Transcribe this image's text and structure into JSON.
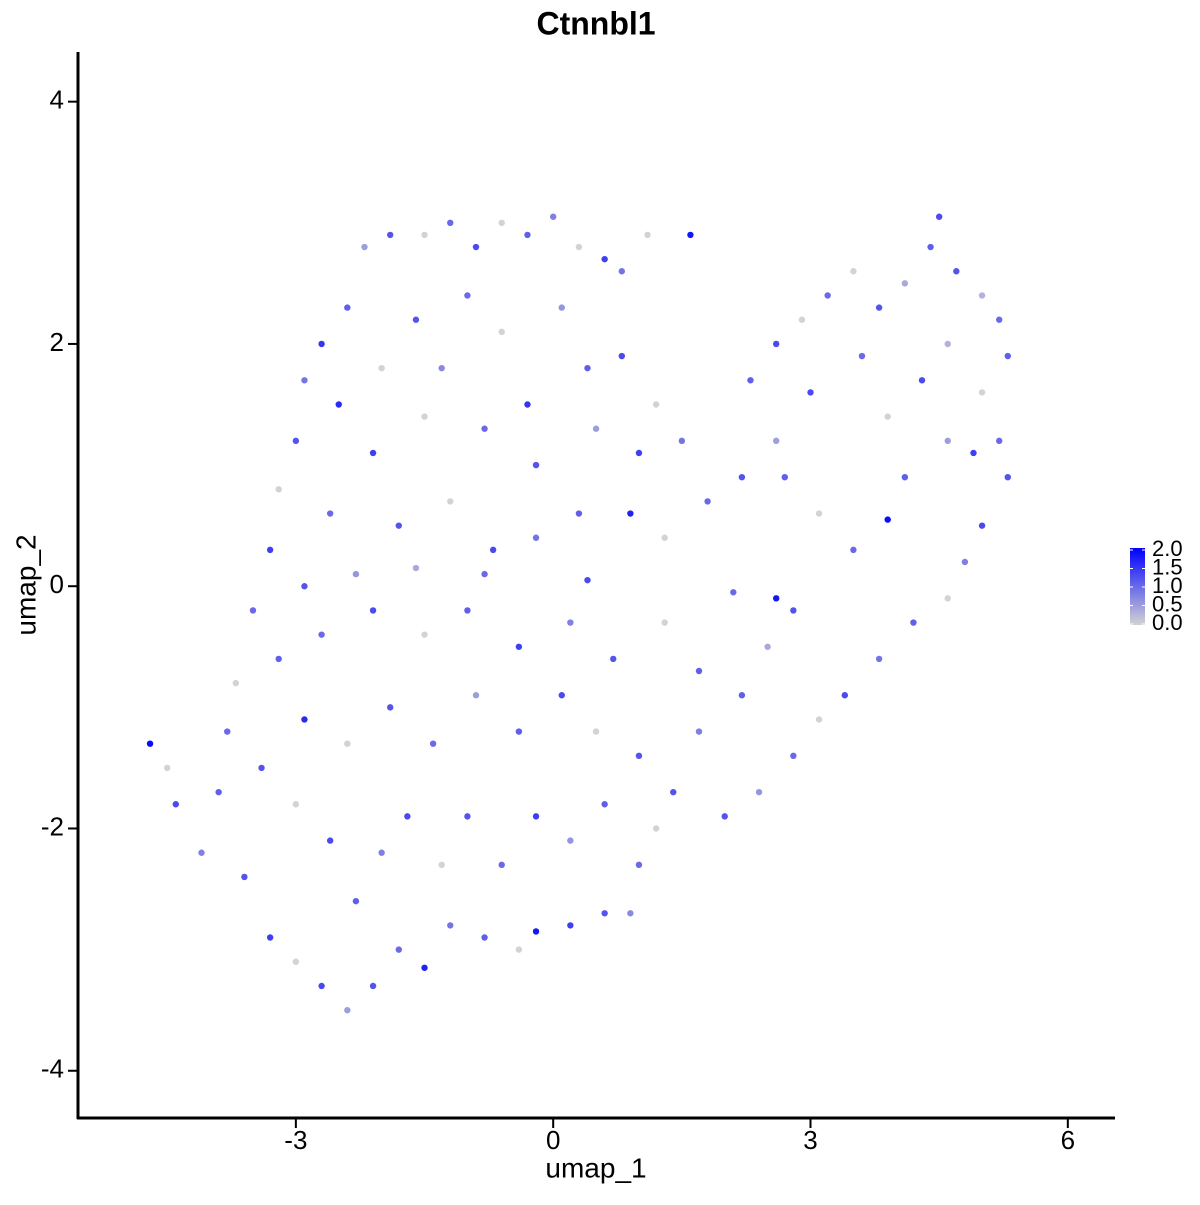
{
  "chart_data": {
    "type": "scatter",
    "title": "Ctnnbl1",
    "xlabel": "umap_1",
    "ylabel": "umap_2",
    "xlim": [
      -5.54,
      6.55
    ],
    "ylim": [
      -4.39,
      4.41
    ],
    "xticks": [
      -3,
      0,
      3,
      6
    ],
    "yticks": [
      -4,
      -2,
      0,
      2,
      4
    ],
    "color_scale": {
      "low": "#d3d3d3",
      "high": "#0000ff",
      "lim": [
        0,
        2
      ],
      "ticks": [
        {
          "value": 0,
          "label": "0.0"
        },
        {
          "value": 0.5,
          "label": "0.5"
        },
        {
          "value": 1,
          "label": "1.0"
        },
        {
          "value": 1.5,
          "label": "1.5"
        },
        {
          "value": 2,
          "label": "2.0"
        }
      ]
    },
    "x": [
      -2.2,
      -1.9,
      -1.5,
      -1.2,
      -0.9,
      -0.6,
      -0.3,
      0,
      0.3,
      0.6,
      0.8,
      1.1,
      1.6,
      -2.4,
      -2.7,
      -2.9,
      -3.0,
      -3.2,
      -3.3,
      -3.5,
      -2.5,
      -2.0,
      -1.6,
      -1.3,
      -1.0,
      -0.6,
      -0.3,
      0.1,
      0.4,
      0.8,
      1.2,
      1.5,
      1.0,
      0.5,
      -0.2,
      -0.8,
      -1.5,
      -2.1,
      -2.6,
      -2.3,
      -1.8,
      -1.2,
      -0.7,
      -0.2,
      0.3,
      0.9,
      1.3,
      1.8,
      2.2,
      2.6,
      2.3,
      2.6,
      2.9,
      3.2,
      3.5,
      3.8,
      4.1,
      4.4,
      4.5,
      4.7,
      5.0,
      5.2,
      5.3,
      5.0,
      5.2,
      5.3,
      5.0,
      4.8,
      4.6,
      4.2,
      3.8,
      3.4,
      3.1,
      2.8,
      2.4,
      2.0,
      3.6,
      3.9,
      4.3,
      4.6,
      4.1,
      3.9,
      3.5,
      3.1,
      2.7,
      2.8,
      2.5,
      2.1,
      2.6,
      2.2,
      1.7,
      3.0,
      4.6,
      4.9,
      -4.7,
      -4.5,
      -4.4,
      -4.1,
      -3.9,
      -3.6,
      -3.3,
      -3.0,
      -2.7,
      -2.4,
      -2.1,
      -1.8,
      -1.5,
      -1.2,
      -0.8,
      -0.4,
      -0.2,
      0.2,
      0.6,
      0.9,
      1.0,
      1.2,
      1.4,
      -3.8,
      -3.4,
      -3.0,
      -2.6,
      -2.3,
      -2.0,
      -1.7,
      -1.3,
      -1.0,
      -0.6,
      -0.2,
      0.2,
      0.6,
      1.0,
      0.5,
      0.1,
      -0.4,
      -0.9,
      -1.4,
      -1.9,
      -2.4,
      -2.9,
      -3.2,
      -2.7,
      -2.1,
      -1.5,
      -1.0,
      -0.4,
      0.2,
      0.7,
      1.3,
      1.7,
      0.4,
      -0.8,
      -1.6,
      -2.9,
      -3.7
    ],
    "y": [
      2.8,
      2.9,
      2.9,
      3.0,
      2.8,
      3.0,
      2.9,
      3.05,
      2.8,
      2.7,
      2.6,
      2.9,
      2.9,
      2.3,
      2.0,
      1.7,
      1.2,
      0.8,
      0.3,
      -0.2,
      1.5,
      1.8,
      2.2,
      1.8,
      2.4,
      2.1,
      1.5,
      2.3,
      1.8,
      1.9,
      1.5,
      1.2,
      1.1,
      1.3,
      1.0,
      1.3,
      1.4,
      1.1,
      0.6,
      0.1,
      0.5,
      0.7,
      0.3,
      0.4,
      0.6,
      0.6,
      0.4,
      0.7,
      0.9,
      1.2,
      1.7,
      2.0,
      2.2,
      2.4,
      2.6,
      2.3,
      2.5,
      2.8,
      3.05,
      2.6,
      2.4,
      2.2,
      1.9,
      1.6,
      1.2,
      0.9,
      0.5,
      0.2,
      -0.1,
      -0.3,
      -0.6,
      -0.9,
      -1.1,
      -1.4,
      -1.7,
      -1.9,
      1.9,
      1.4,
      1.7,
      1.2,
      0.9,
      0.55,
      0.3,
      0.6,
      0.9,
      -0.2,
      -0.5,
      -0.05,
      -0.1,
      -0.9,
      -1.2,
      1.6,
      2.0,
      1.1,
      -1.3,
      -1.5,
      -1.8,
      -2.2,
      -1.7,
      -2.4,
      -2.9,
      -3.1,
      -3.3,
      -3.5,
      -3.3,
      -3.0,
      -3.15,
      -2.8,
      -2.9,
      -3.0,
      -2.85,
      -2.8,
      -2.7,
      -2.7,
      -2.3,
      -2.0,
      -1.7,
      -1.2,
      -1.5,
      -1.8,
      -2.1,
      -2.6,
      -2.2,
      -1.9,
      -2.3,
      -1.9,
      -2.3,
      -1.9,
      -2.1,
      -1.8,
      -1.4,
      -1.2,
      -0.9,
      -1.2,
      -0.9,
      -1.3,
      -1.0,
      -1.3,
      -1.1,
      -0.6,
      -0.4,
      -0.2,
      -0.4,
      -0.2,
      -0.5,
      -0.3,
      -0.6,
      -0.3,
      -0.7,
      0.05,
      0.1,
      0.15,
      0.0,
      -0.8
    ],
    "values": [
      0.5,
      1.2,
      0,
      1.0,
      1.3,
      0,
      1.1,
      0.8,
      0,
      1.4,
      0.9,
      0,
      1.8,
      1.1,
      1.5,
      0.9,
      1.2,
      0,
      1.4,
      1.0,
      1.6,
      0,
      1.2,
      0.7,
      1.0,
      0,
      1.5,
      0.6,
      1.1,
      1.3,
      0,
      0.9,
      1.4,
      0.5,
      1.2,
      1.0,
      0,
      1.4,
      1.0,
      0.6,
      1.2,
      0,
      1.3,
      0.9,
      1.1,
      1.7,
      0,
      1.0,
      1.2,
      0.5,
      1.1,
      1.3,
      0,
      1.0,
      0,
      1.2,
      0.4,
      1.1,
      1.3,
      1.2,
      0.3,
      1.0,
      1.1,
      0,
      1.0,
      1.2,
      1.3,
      0.8,
      0,
      1.1,
      0.9,
      1.3,
      0,
      1.0,
      0.6,
      1.2,
      1.0,
      0,
      1.3,
      0.5,
      1.1,
      1.9,
      1.0,
      0,
      1.1,
      1.2,
      0.4,
      1.0,
      1.8,
      1.1,
      0.8,
      1.3,
      0.3,
      1.4,
      1.9,
      0,
      1.3,
      0.8,
      1.1,
      1.2,
      1.4,
      0,
      1.3,
      0.5,
      1.2,
      1.0,
      1.7,
      0.9,
      1.1,
      0,
      1.8,
      1.4,
      1.2,
      0.7,
      1.0,
      0,
      1.2,
      1.0,
      1.2,
      0,
      1.3,
      1.1,
      0.8,
      1.3,
      0,
      1.2,
      1.0,
      1.4,
      0.6,
      1.1,
      1.2,
      0,
      1.3,
      1.1,
      0.5,
      1.0,
      1.2,
      0,
      1.6,
      1.1,
      1.0,
      1.3,
      0,
      1.1,
      1.4,
      0.8,
      1.2,
      0,
      1.1,
      1.3,
      1.0,
      0.4,
      1.2,
      0
    ]
  }
}
